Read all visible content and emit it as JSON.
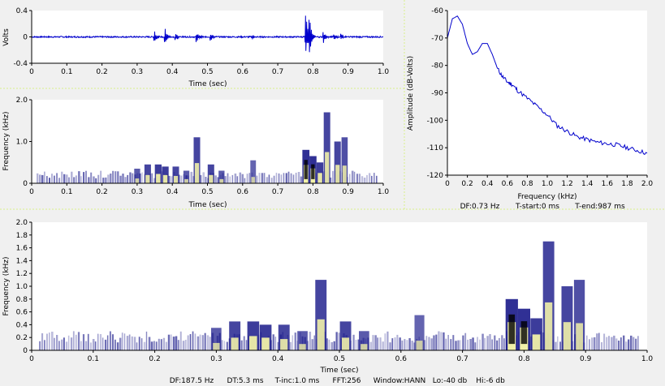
{
  "chart_data": [
    {
      "id": "waveform",
      "type": "line",
      "xlabel": "Time (sec)",
      "ylabel": "Volts",
      "xlim": [
        0,
        1
      ],
      "ylim": [
        -0.4,
        0.4
      ],
      "x_ticks": [
        "0",
        "0.1",
        "0.2",
        "0.3",
        "0.4",
        "0.5",
        "0.6",
        "0.7",
        "0.8",
        "0.9",
        "1.0"
      ],
      "y_ticks": [
        "0.4",
        "0",
        "-0.4"
      ],
      "line_color": "#0000cc",
      "events": [
        {
          "t": 0.35,
          "amp": 0.1
        },
        {
          "t": 0.38,
          "amp": 0.13
        },
        {
          "t": 0.41,
          "amp": 0.06
        },
        {
          "t": 0.47,
          "amp": 0.08
        },
        {
          "t": 0.51,
          "amp": 0.07
        },
        {
          "t": 0.63,
          "amp": 0.03
        },
        {
          "t": 0.78,
          "amp": 0.36
        },
        {
          "t": 0.79,
          "amp": 0.28
        },
        {
          "t": 0.83,
          "amp": 0.1
        },
        {
          "t": 0.86,
          "amp": 0.05
        },
        {
          "t": 0.88,
          "amp": 0.06
        }
      ]
    },
    {
      "id": "spectrogram-small",
      "type": "heatmap",
      "xlabel": "Time (sec)",
      "ylabel": "Frequency (kHz)",
      "xlim": [
        0,
        1
      ],
      "ylim": [
        0,
        2
      ],
      "x_ticks": [
        "0",
        "0.1",
        "0.2",
        "0.3",
        "0.4",
        "0.5",
        "0.6",
        "0.7",
        "0.8",
        "0.9",
        "1.0"
      ],
      "y_ticks": [
        "2.0",
        "1.0",
        "0"
      ]
    },
    {
      "id": "spectrum",
      "type": "line",
      "xlabel": "Frequency (kHz)",
      "ylabel": "Amplitude (dB-Volts)",
      "xlim": [
        0,
        2
      ],
      "ylim": [
        -120,
        -60
      ],
      "x_ticks": [
        "0",
        "0.2",
        "0.4",
        "0.6",
        "0.8",
        "1.0",
        "1.2",
        "1.4",
        "1.6",
        "1.8",
        "2.0"
      ],
      "y_ticks": [
        "-60",
        "-70",
        "-80",
        "-90",
        "-100",
        "-110",
        "-120"
      ],
      "line_color": "#0000cc",
      "x": [
        0,
        0.05,
        0.1,
        0.15,
        0.2,
        0.25,
        0.3,
        0.35,
        0.4,
        0.45,
        0.5,
        0.55,
        0.6,
        0.65,
        0.7,
        0.8,
        0.9,
        1.0,
        1.1,
        1.2,
        1.3,
        1.4,
        1.5,
        1.6,
        1.7,
        1.8,
        1.9,
        2.0
      ],
      "y": [
        -70,
        -63,
        -62,
        -65,
        -72,
        -76,
        -75,
        -72,
        -72,
        -76,
        -81,
        -84,
        -86,
        -87,
        -89,
        -92,
        -95,
        -98,
        -102,
        -104,
        -106,
        -107,
        -108,
        -108.5,
        -109,
        -110,
        -111,
        -112
      ],
      "info": {
        "df": "DF:0.73 Hz",
        "tstart": "T-start:0 ms",
        "tend": "T-end:987 ms"
      }
    },
    {
      "id": "spectrogram-large",
      "type": "heatmap",
      "xlabel": "Time (sec)",
      "ylabel": "Frequency (kHz)",
      "xlim": [
        0,
        1
      ],
      "ylim": [
        0,
        2
      ],
      "x_ticks": [
        "0",
        "0.1",
        "0.2",
        "0.3",
        "0.4",
        "0.5",
        "0.6",
        "0.7",
        "0.8",
        "0.9",
        "1.0"
      ],
      "y_ticks": [
        "2.0",
        "1.8",
        "1.6",
        "1.4",
        "1.2",
        "1.0",
        "0.8",
        "0.6",
        "0.4",
        "0.2",
        "0"
      ],
      "info": {
        "df": "DF:187.5 Hz",
        "dt": "DT:5.3 ms",
        "tinc": "T-inc:1.0 ms",
        "fft": "FFT:256",
        "window": "Window:HANN",
        "lo": "Lo:-40 db",
        "hi": "Hi:-6 db"
      }
    }
  ],
  "spectrogram_events": [
    {
      "t": 0.3,
      "fmax": 0.35,
      "strength": 0.6
    },
    {
      "t": 0.33,
      "fmax": 0.45,
      "strength": 0.8
    },
    {
      "t": 0.36,
      "fmax": 0.45,
      "strength": 0.9
    },
    {
      "t": 0.38,
      "fmax": 0.4,
      "strength": 0.9
    },
    {
      "t": 0.41,
      "fmax": 0.4,
      "strength": 0.8
    },
    {
      "t": 0.44,
      "fmax": 0.3,
      "strength": 0.6
    },
    {
      "t": 0.47,
      "fmax": 1.1,
      "strength": 0.8
    },
    {
      "t": 0.51,
      "fmax": 0.45,
      "strength": 0.8
    },
    {
      "t": 0.54,
      "fmax": 0.3,
      "strength": 0.6
    },
    {
      "t": 0.63,
      "fmax": 0.55,
      "strength": 0.5
    },
    {
      "t": 0.78,
      "fmax": 0.8,
      "strength": 1.0
    },
    {
      "t": 0.8,
      "fmax": 0.65,
      "strength": 1.0
    },
    {
      "t": 0.82,
      "fmax": 0.5,
      "strength": 0.9
    },
    {
      "t": 0.84,
      "fmax": 1.7,
      "strength": 0.8
    },
    {
      "t": 0.87,
      "fmax": 1.0,
      "strength": 0.8
    },
    {
      "t": 0.89,
      "fmax": 1.1,
      "strength": 0.7
    }
  ],
  "colors": {
    "background": "#f0f0f0",
    "plot_bg": "#ffffff",
    "divider": "#d8f08a",
    "spectrogram_low": "#d8d8f0",
    "spectrogram_mid": "#1a1a8a",
    "spectrogram_high": "#f0f0a8",
    "spectrogram_peak": "#000000"
  }
}
